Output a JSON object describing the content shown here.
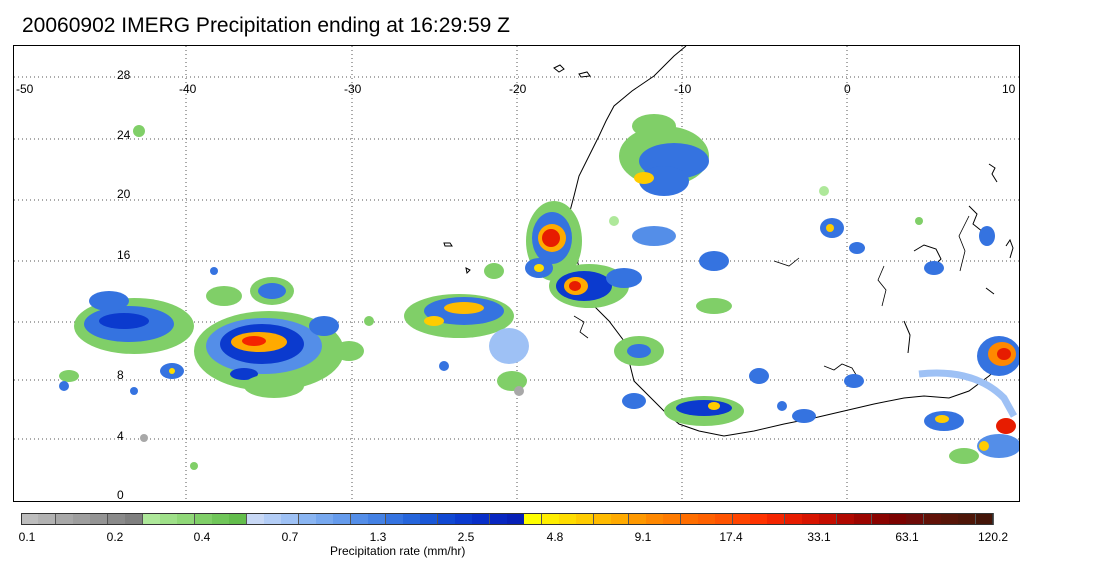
{
  "title": "20060902 IMERG Precipitation ending at 16:29:59 Z",
  "map": {
    "lon_labels": [
      "-50",
      "-40",
      "-30",
      "-20",
      "-10",
      "0",
      "10"
    ],
    "lat_labels": [
      "28",
      "24",
      "20",
      "16",
      "8",
      "4",
      "0"
    ]
  },
  "colorbar": {
    "tick_labels": [
      "0.1",
      "0.2",
      "0.4",
      "0.7",
      "1.3",
      "2.5",
      "4.8",
      "9.1",
      "17.4",
      "33.1",
      "63.1",
      "120.2"
    ],
    "unit_label": "Precipitation rate (mm/hr)",
    "colors": [
      "#bdbdbd",
      "#b2b2b2",
      "#a8a8a8",
      "#9e9e9e",
      "#949494",
      "#8a8a8a",
      "#7f7f7f",
      "#aee89a",
      "#9fe089",
      "#90d878",
      "#80cf68",
      "#70c659",
      "#63bd4c",
      "#c8d8f5",
      "#b3cdf6",
      "#9ec1f5",
      "#8ab5f2",
      "#77a8ef",
      "#659bec",
      "#548ee8",
      "#4481e4",
      "#3573e0",
      "#2665db",
      "#1a57d6",
      "#1048d2",
      "#0b3ace",
      "#082ec8",
      "#0726c0",
      "#061fb6",
      "#ffff00",
      "#ffee00",
      "#ffdd00",
      "#ffcc00",
      "#ffbb00",
      "#ffaa00",
      "#ff9900",
      "#ff8800",
      "#ff7b00",
      "#ff6e00",
      "#ff6100",
      "#ff5300",
      "#ff4400",
      "#ff3300",
      "#f42500",
      "#e71c00",
      "#d71400",
      "#c40d00",
      "#b00800",
      "#9c0500",
      "#8a0300",
      "#7c0200",
      "#6e0b08",
      "#621208",
      "#581508",
      "#4e1608",
      "#441508"
    ]
  }
}
